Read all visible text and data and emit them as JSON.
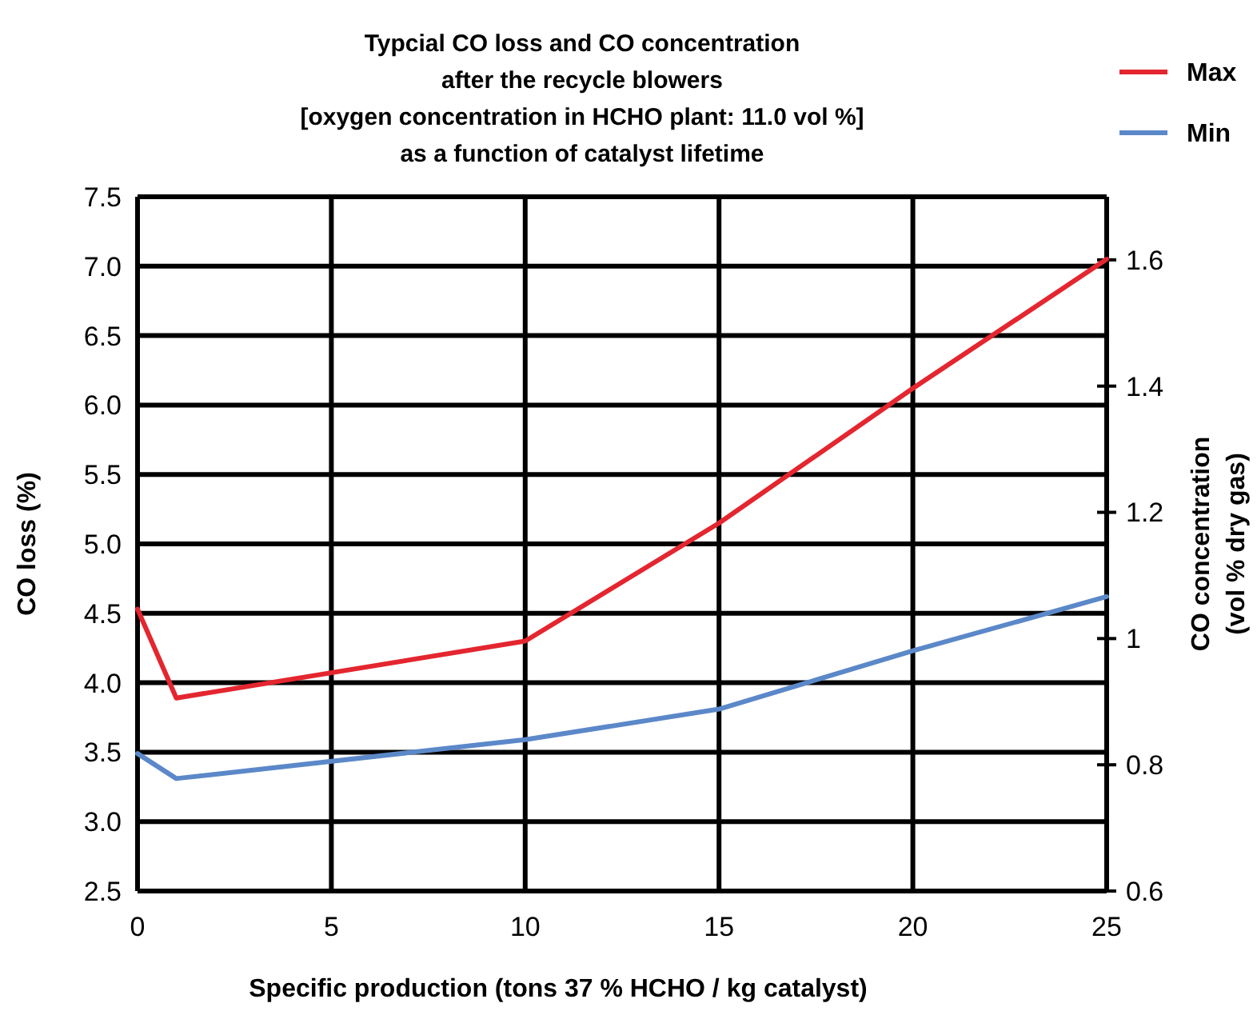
{
  "chart_data": {
    "type": "line",
    "title": "Typcial CO loss and CO concentration\nafter the recycle blowers\n[oxygen concentration in HCHO plant: 11.0 vol %]\nas a function of catalyst lifetime",
    "xlabel": "Specific production (tons 37 % HCHO / kg catalyst)",
    "ylabel": "CO loss (%)",
    "y2label": "CO concentration\n(vol % dry gas)",
    "x": [
      0,
      1,
      10,
      15,
      20,
      25
    ],
    "series": [
      {
        "name": "Max",
        "color": "#e3262f",
        "values": [
          4.53,
          3.89,
          4.3,
          5.15,
          6.12,
          7.05
        ]
      },
      {
        "name": "Min",
        "color": "#5b88c8",
        "values": [
          3.49,
          3.31,
          3.59,
          3.81,
          4.23,
          4.62
        ]
      }
    ],
    "xlim": [
      0,
      25
    ],
    "xticks": [
      0,
      5,
      10,
      15,
      20,
      25
    ],
    "ylim": [
      2.5,
      7.5
    ],
    "yticks": [
      {
        "value": 2.5,
        "label": "2.5"
      },
      {
        "value": 3,
        "label": "3.0"
      },
      {
        "value": 3.5,
        "label": "3.5"
      },
      {
        "value": 4,
        "label": "4.0"
      },
      {
        "value": 4.5,
        "label": "4.5"
      },
      {
        "value": 5,
        "label": "5.0"
      },
      {
        "value": 5.5,
        "label": "5.5"
      },
      {
        "value": 6,
        "label": "6.0"
      },
      {
        "value": 6.5,
        "label": "6.5"
      },
      {
        "value": 7,
        "label": "7.0"
      },
      {
        "value": 7.5,
        "label": "7.5"
      }
    ],
    "y2lim": [
      0.6,
      1.7
    ],
    "y2ticks": [
      0.6,
      0.8,
      1,
      1.2,
      1.4,
      1.6
    ],
    "grid": true,
    "legend": "top right",
    "marker": "none",
    "line_style": "solid"
  }
}
